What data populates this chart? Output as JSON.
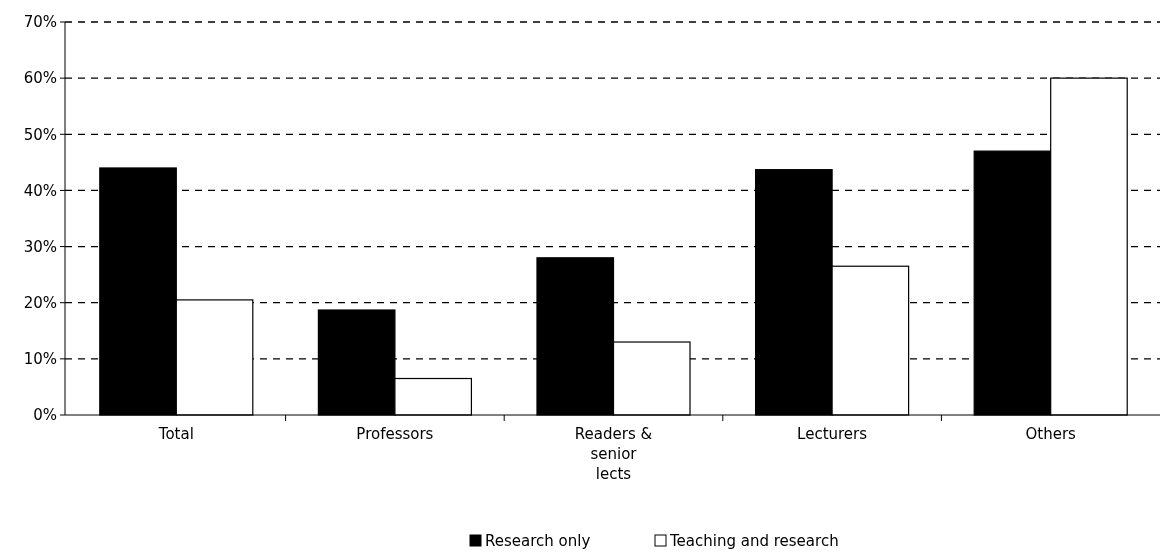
{
  "chart_data": {
    "type": "bar",
    "categories": [
      "Total",
      "Professors",
      "Readers & senior lects",
      "Lecturers",
      "Others"
    ],
    "series": [
      {
        "name": "Research only",
        "color": "#000000",
        "values": [
          44,
          18.7,
          28,
          43.7,
          47
        ]
      },
      {
        "name": "Teaching and research",
        "color": "#ffffff",
        "values": [
          20.5,
          6.5,
          13,
          26.5,
          60
        ]
      }
    ],
    "ylim": [
      0,
      70
    ],
    "yticks": [
      {
        "value": 0,
        "label": "0%"
      },
      {
        "value": 10,
        "label": "10%"
      },
      {
        "value": 20,
        "label": "20%"
      },
      {
        "value": 30,
        "label": "30%"
      },
      {
        "value": 40,
        "label": "40%"
      },
      {
        "value": 50,
        "label": "50%"
      },
      {
        "value": 60,
        "label": "60%"
      },
      {
        "value": 70,
        "label": "70%"
      }
    ],
    "grid": "y",
    "legend": "bottom"
  }
}
